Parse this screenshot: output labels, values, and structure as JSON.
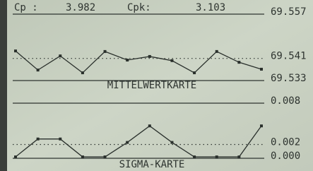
{
  "header": {
    "cp_label": "Cp :",
    "cp_value": 3.982,
    "cpk_label": "Cpk:",
    "cpk_value": 3.103
  },
  "chart_data": [
    {
      "type": "line",
      "title": "MITTELWERTKARTE",
      "categories": [
        null,
        null,
        null,
        null,
        null,
        null,
        null,
        null,
        null,
        null,
        null,
        null
      ],
      "values": [
        69.5437,
        69.5368,
        69.5419,
        69.5358,
        69.5435,
        69.5404,
        69.5417,
        69.5402,
        69.5358,
        69.5435,
        69.5396,
        69.5371
      ],
      "color": "#2a302c",
      "ylim": [
        69.533,
        69.557
      ],
      "yticks": [
        69.533,
        69.541,
        69.557
      ],
      "grid": true
    },
    {
      "type": "line",
      "title": "SIGMA-KARTE",
      "categories": [
        null,
        null,
        null,
        null,
        null,
        null,
        null,
        null,
        null,
        null,
        null,
        null
      ],
      "values": [
        0.0002,
        0.0028,
        0.0028,
        0.0002,
        0.0002,
        0.0023,
        0.0047,
        0.0023,
        0.0002,
        0.0002,
        0.0002,
        0.0047
      ],
      "color": "#2a302c",
      "ylim": [
        0,
        0.008
      ],
      "yticks": [
        {
          "value": 0,
          "label": "0.000"
        },
        0.002,
        0.008
      ],
      "grid": true
    }
  ]
}
